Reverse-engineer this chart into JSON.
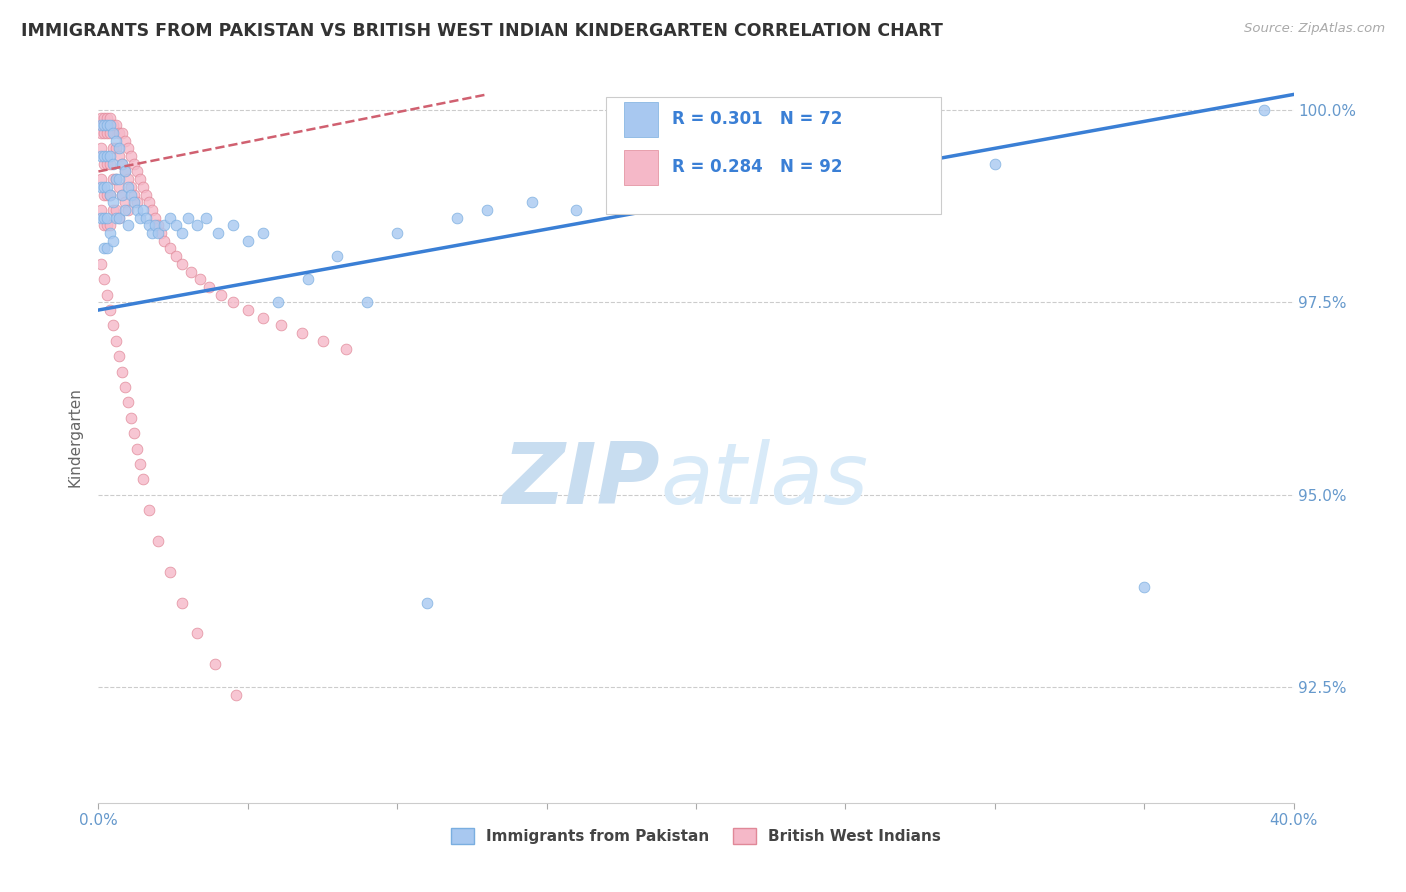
{
  "title": "IMMIGRANTS FROM PAKISTAN VS BRITISH WEST INDIAN KINDERGARTEN CORRELATION CHART",
  "source_text": "Source: ZipAtlas.com",
  "ylabel": "Kindergarten",
  "watermark_zip": "ZIP",
  "watermark_atlas": "atlas",
  "xlim": [
    0.0,
    0.4
  ],
  "ylim": [
    0.91,
    1.005
  ],
  "xticks": [
    0.0,
    0.1,
    0.2,
    0.3,
    0.4
  ],
  "xticklabels": [
    "0.0%",
    "",
    "",
    "",
    "40.0%"
  ],
  "yticks": [
    0.925,
    0.95,
    0.975,
    1.0
  ],
  "yticklabels": [
    "92.5%",
    "95.0%",
    "97.5%",
    "100.0%"
  ],
  "series1_color": "#a8c8f0",
  "series1_edge": "#7aaee0",
  "series2_color": "#f5b8c8",
  "series2_edge": "#e08898",
  "trendline1_color": "#3a7fd5",
  "trendline2_color": "#d06070",
  "trendline1_x0": 0.0,
  "trendline1_y0": 0.974,
  "trendline1_x1": 0.4,
  "trendline1_y1": 1.002,
  "trendline2_x0": 0.0,
  "trendline2_y0": 0.992,
  "trendline2_x1": 0.13,
  "trendline2_y1": 1.002,
  "R1": 0.301,
  "N1": 72,
  "R2": 0.284,
  "N2": 92,
  "legend_label1": "Immigrants from Pakistan",
  "legend_label2": "British West Indians",
  "title_color": "#333333",
  "axis_color": "#6699cc",
  "grid_color": "#cccccc",
  "watermark_color_zip": "#c8ddf0",
  "watermark_color_atlas": "#d8eaf8",
  "pakistan_x": [
    0.001,
    0.001,
    0.001,
    0.001,
    0.002,
    0.002,
    0.002,
    0.002,
    0.002,
    0.003,
    0.003,
    0.003,
    0.003,
    0.003,
    0.004,
    0.004,
    0.004,
    0.004,
    0.005,
    0.005,
    0.005,
    0.005,
    0.006,
    0.006,
    0.006,
    0.007,
    0.007,
    0.007,
    0.008,
    0.008,
    0.009,
    0.009,
    0.01,
    0.01,
    0.011,
    0.012,
    0.013,
    0.014,
    0.015,
    0.016,
    0.017,
    0.018,
    0.019,
    0.02,
    0.022,
    0.024,
    0.026,
    0.028,
    0.03,
    0.033,
    0.036,
    0.04,
    0.045,
    0.05,
    0.055,
    0.06,
    0.07,
    0.08,
    0.09,
    0.1,
    0.11,
    0.12,
    0.13,
    0.145,
    0.16,
    0.18,
    0.2,
    0.23,
    0.26,
    0.3,
    0.35,
    0.39
  ],
  "pakistan_y": [
    0.998,
    0.994,
    0.99,
    0.986,
    0.998,
    0.994,
    0.99,
    0.986,
    0.982,
    0.998,
    0.994,
    0.99,
    0.986,
    0.982,
    0.998,
    0.994,
    0.989,
    0.984,
    0.997,
    0.993,
    0.988,
    0.983,
    0.996,
    0.991,
    0.986,
    0.995,
    0.991,
    0.986,
    0.993,
    0.989,
    0.992,
    0.987,
    0.99,
    0.985,
    0.989,
    0.988,
    0.987,
    0.986,
    0.987,
    0.986,
    0.985,
    0.984,
    0.985,
    0.984,
    0.985,
    0.986,
    0.985,
    0.984,
    0.986,
    0.985,
    0.986,
    0.984,
    0.985,
    0.983,
    0.984,
    0.975,
    0.978,
    0.981,
    0.975,
    0.984,
    0.936,
    0.986,
    0.987,
    0.988,
    0.987,
    0.988,
    0.989,
    0.99,
    0.991,
    0.993,
    0.938,
    1.0
  ],
  "bwi_x": [
    0.001,
    0.001,
    0.001,
    0.001,
    0.001,
    0.002,
    0.002,
    0.002,
    0.002,
    0.002,
    0.003,
    0.003,
    0.003,
    0.003,
    0.003,
    0.004,
    0.004,
    0.004,
    0.004,
    0.004,
    0.005,
    0.005,
    0.005,
    0.005,
    0.006,
    0.006,
    0.006,
    0.006,
    0.007,
    0.007,
    0.007,
    0.007,
    0.008,
    0.008,
    0.008,
    0.009,
    0.009,
    0.009,
    0.01,
    0.01,
    0.01,
    0.011,
    0.011,
    0.012,
    0.012,
    0.013,
    0.013,
    0.014,
    0.015,
    0.016,
    0.017,
    0.018,
    0.019,
    0.02,
    0.021,
    0.022,
    0.024,
    0.026,
    0.028,
    0.031,
    0.034,
    0.037,
    0.041,
    0.045,
    0.05,
    0.055,
    0.061,
    0.068,
    0.075,
    0.083,
    0.001,
    0.002,
    0.003,
    0.004,
    0.005,
    0.006,
    0.007,
    0.008,
    0.009,
    0.01,
    0.011,
    0.012,
    0.013,
    0.014,
    0.015,
    0.017,
    0.02,
    0.024,
    0.028,
    0.033,
    0.039,
    0.046
  ],
  "bwi_y": [
    0.999,
    0.997,
    0.995,
    0.991,
    0.987,
    0.999,
    0.997,
    0.993,
    0.989,
    0.985,
    0.999,
    0.997,
    0.993,
    0.989,
    0.985,
    0.999,
    0.997,
    0.993,
    0.989,
    0.985,
    0.998,
    0.995,
    0.991,
    0.987,
    0.998,
    0.995,
    0.991,
    0.987,
    0.997,
    0.994,
    0.99,
    0.986,
    0.997,
    0.993,
    0.989,
    0.996,
    0.992,
    0.988,
    0.995,
    0.991,
    0.987,
    0.994,
    0.99,
    0.993,
    0.989,
    0.992,
    0.988,
    0.991,
    0.99,
    0.989,
    0.988,
    0.987,
    0.986,
    0.985,
    0.984,
    0.983,
    0.982,
    0.981,
    0.98,
    0.979,
    0.978,
    0.977,
    0.976,
    0.975,
    0.974,
    0.973,
    0.972,
    0.971,
    0.97,
    0.969,
    0.98,
    0.978,
    0.976,
    0.974,
    0.972,
    0.97,
    0.968,
    0.966,
    0.964,
    0.962,
    0.96,
    0.958,
    0.956,
    0.954,
    0.952,
    0.948,
    0.944,
    0.94,
    0.936,
    0.932,
    0.928,
    0.924
  ]
}
